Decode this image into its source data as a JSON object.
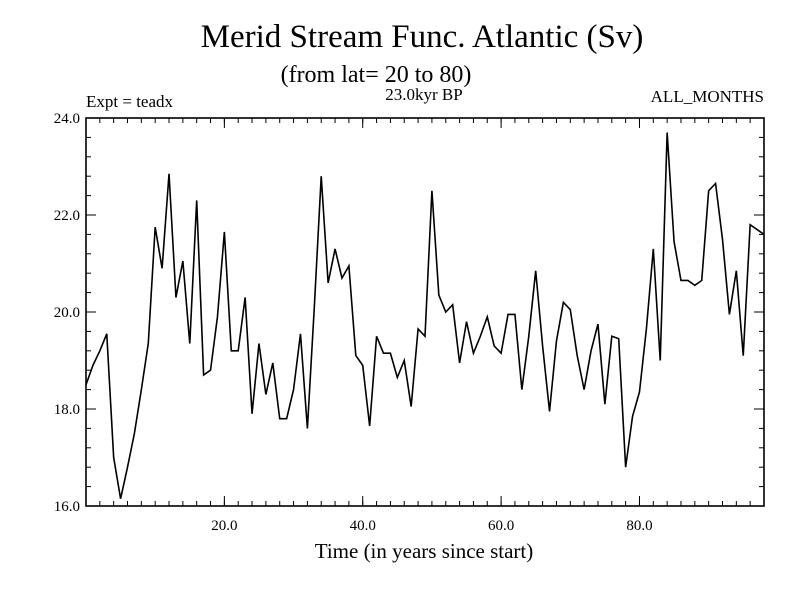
{
  "chart_data": {
    "type": "line",
    "title": "Merid Stream Func. Atlantic (Sv)",
    "subtitle": "(from lat= 20 to 80)",
    "period": "23.0kyr BP",
    "experiment": "Expt = teadx",
    "months": "ALL_MONTHS",
    "xlabel": "Time (in years since start)",
    "ylabel": "",
    "xlim": [
      0,
      98
    ],
    "ylim": [
      16.0,
      24.0
    ],
    "x_ticks": [
      20,
      40,
      60,
      80
    ],
    "x_tick_labels": [
      "20.0",
      "40.0",
      "60.0",
      "80.0"
    ],
    "y_ticks": [
      16,
      18,
      20,
      22,
      24
    ],
    "y_tick_labels": [
      "16.0",
      "18.0",
      "20.0",
      "22.0",
      "24.0"
    ],
    "x_minor_step": 2,
    "y_minor_step": 0.4,
    "grid": false,
    "series": [
      {
        "name": "Merid Stream Func. Atlantic",
        "x_start": 0,
        "x_step": 1,
        "values": [
          18.5,
          18.9,
          19.2,
          19.55,
          17.0,
          16.15,
          16.8,
          17.5,
          18.4,
          19.35,
          21.75,
          20.9,
          22.85,
          20.3,
          21.05,
          19.35,
          22.3,
          18.7,
          18.8,
          19.9,
          21.65,
          19.2,
          19.2,
          20.3,
          17.9,
          19.35,
          18.3,
          18.95,
          17.8,
          17.8,
          18.4,
          19.55,
          17.6,
          20.1,
          22.8,
          20.6,
          21.3,
          20.7,
          20.95,
          19.1,
          18.9,
          17.65,
          19.5,
          19.15,
          19.15,
          18.65,
          19.0,
          18.05,
          19.65,
          19.5,
          22.5,
          20.35,
          20.0,
          20.15,
          18.95,
          19.8,
          19.15,
          19.5,
          19.9,
          19.3,
          19.15,
          19.95,
          19.95,
          18.4,
          19.5,
          20.85,
          19.3,
          17.95,
          19.4,
          20.2,
          20.05,
          19.1,
          18.4,
          19.2,
          19.75,
          18.1,
          19.5,
          19.45,
          16.8,
          17.85,
          18.35,
          19.65,
          21.3,
          19.0,
          23.7,
          21.45,
          20.65,
          20.65,
          20.55,
          20.65,
          22.5,
          22.65,
          21.5,
          19.95,
          20.85,
          19.1,
          21.8,
          21.7,
          21.6
        ]
      }
    ]
  }
}
